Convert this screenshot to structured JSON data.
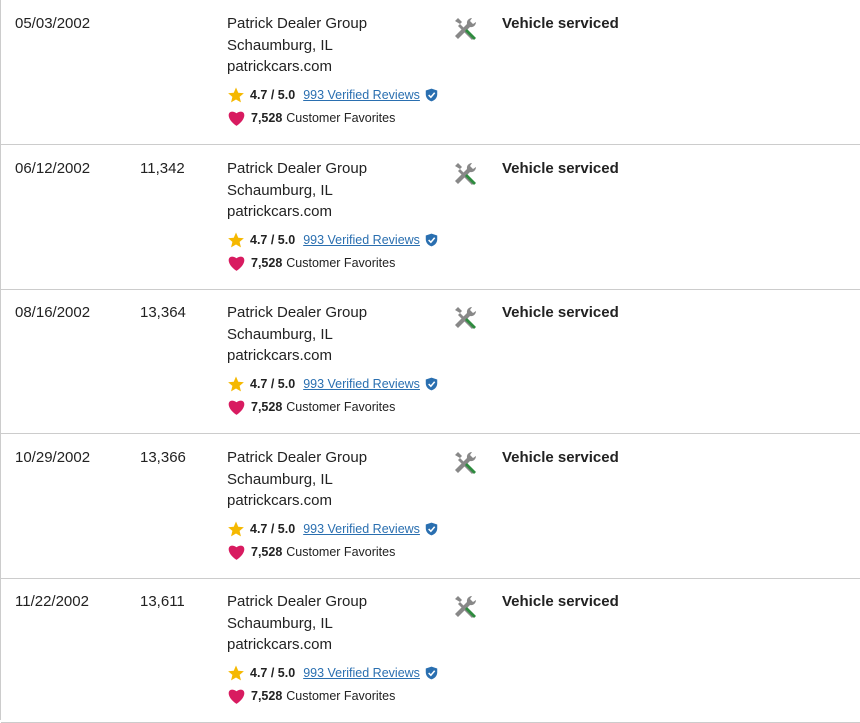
{
  "records": [
    {
      "date": "05/03/2002",
      "mileage": null,
      "dealer": {
        "name": "Patrick Dealer Group",
        "location": "Schaumburg, IL",
        "website": "patrickcars.com",
        "rating": "4.7 / 5.0",
        "reviews": "993 Verified Reviews",
        "favorites": "7,528",
        "favorites_label": "Customer Favorites"
      },
      "event": "Vehicle serviced"
    },
    {
      "date": "06/12/2002",
      "mileage": "11,342",
      "dealer": {
        "name": "Patrick Dealer Group",
        "location": "Schaumburg, IL",
        "website": "patrickcars.com",
        "rating": "4.7 / 5.0",
        "reviews": "993 Verified Reviews",
        "favorites": "7,528",
        "favorites_label": "Customer Favorites"
      },
      "event": "Vehicle serviced"
    },
    {
      "date": "08/16/2002",
      "mileage": "13,364",
      "dealer": {
        "name": "Patrick Dealer Group",
        "location": "Schaumburg, IL",
        "website": "patrickcars.com",
        "rating": "4.7 / 5.0",
        "reviews": "993 Verified Reviews",
        "favorites": "7,528",
        "favorites_label": "Customer Favorites"
      },
      "event": "Vehicle serviced"
    },
    {
      "date": "10/29/2002",
      "mileage": "13,366",
      "dealer": {
        "name": "Patrick Dealer Group",
        "location": "Schaumburg, IL",
        "website": "patrickcars.com",
        "rating": "4.7 / 5.0",
        "reviews": "993 Verified Reviews",
        "favorites": "7,528",
        "favorites_label": "Customer Favorites"
      },
      "event": "Vehicle serviced"
    },
    {
      "date": "11/22/2002",
      "mileage": "13,611",
      "dealer": {
        "name": "Patrick Dealer Group",
        "location": "Schaumburg, IL",
        "website": "patrickcars.com",
        "rating": "4.7 / 5.0",
        "reviews": "993 Verified Reviews",
        "favorites": "7,528",
        "favorites_label": "Customer Favorites"
      },
      "event": "Vehicle serviced"
    }
  ]
}
